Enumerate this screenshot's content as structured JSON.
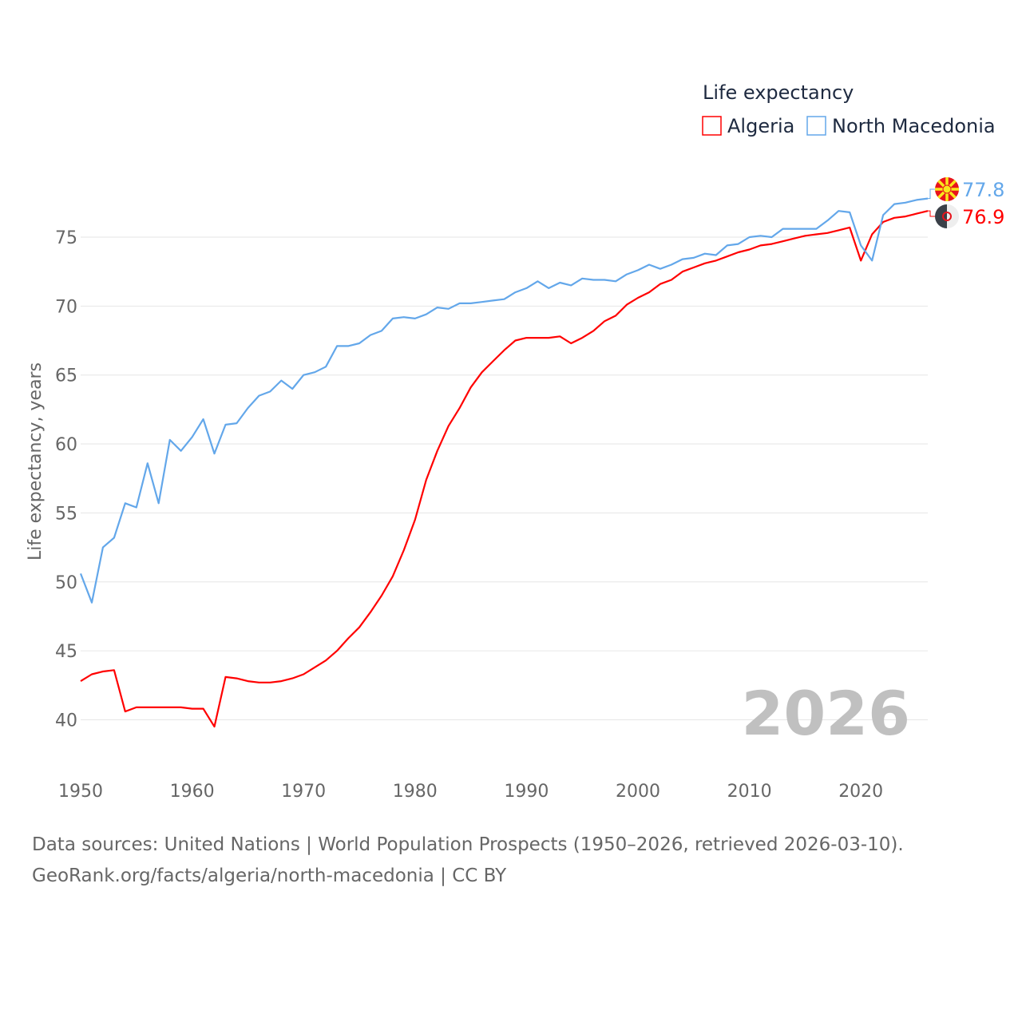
{
  "chart_data": {
    "type": "line",
    "title": "",
    "legend_title": "Life expectancy",
    "legend_placement": "top-right",
    "ylabel": "Life expectancy, years",
    "xlabel": "",
    "ylim": [
      37,
      79
    ],
    "xlim": [
      1950,
      2026
    ],
    "y_ticks": [
      40,
      45,
      50,
      55,
      60,
      65,
      70,
      75
    ],
    "x_ticks": [
      1950,
      1960,
      1970,
      1980,
      1990,
      2000,
      2010,
      2020
    ],
    "grid": true,
    "year_watermark": "2026",
    "x": [
      1950,
      1951,
      1952,
      1953,
      1954,
      1955,
      1956,
      1957,
      1958,
      1959,
      1960,
      1961,
      1962,
      1963,
      1964,
      1965,
      1966,
      1967,
      1968,
      1969,
      1970,
      1971,
      1972,
      1973,
      1974,
      1975,
      1976,
      1977,
      1978,
      1979,
      1980,
      1981,
      1982,
      1983,
      1984,
      1985,
      1986,
      1987,
      1988,
      1989,
      1990,
      1991,
      1992,
      1993,
      1994,
      1995,
      1996,
      1997,
      1998,
      1999,
      2000,
      2001,
      2002,
      2003,
      2004,
      2005,
      2006,
      2007,
      2008,
      2009,
      2010,
      2011,
      2012,
      2013,
      2014,
      2015,
      2016,
      2017,
      2018,
      2019,
      2020,
      2021,
      2022,
      2023,
      2024,
      2025,
      2026
    ],
    "series": [
      {
        "name": "Algeria",
        "color": "#ff0000",
        "end_label": "76.9",
        "flag": "algeria",
        "values": [
          42.8,
          43.3,
          43.5,
          43.6,
          40.6,
          40.9,
          40.9,
          40.9,
          40.9,
          40.9,
          40.8,
          40.8,
          39.5,
          43.1,
          43.0,
          42.8,
          42.7,
          42.7,
          42.8,
          43.0,
          43.3,
          43.8,
          44.3,
          45.0,
          45.9,
          46.7,
          47.8,
          49.0,
          50.4,
          52.3,
          54.5,
          57.4,
          59.5,
          61.3,
          62.6,
          64.1,
          65.2,
          66.0,
          66.8,
          67.5,
          67.7,
          67.7,
          67.7,
          67.8,
          67.3,
          67.7,
          68.2,
          68.9,
          69.3,
          70.1,
          70.6,
          71.0,
          71.6,
          71.9,
          72.5,
          72.8,
          73.1,
          73.3,
          73.6,
          73.9,
          74.1,
          74.4,
          74.5,
          74.7,
          74.9,
          75.1,
          75.2,
          75.3,
          75.5,
          75.7,
          73.3,
          75.2,
          76.1,
          76.4,
          76.5,
          76.7,
          76.9
        ]
      },
      {
        "name": "North Macedonia",
        "color": "#63a7ea",
        "end_label": "77.8",
        "flag": "north-macedonia",
        "values": [
          50.6,
          48.5,
          52.5,
          53.2,
          55.7,
          55.4,
          58.6,
          55.7,
          60.3,
          59.5,
          60.5,
          61.8,
          59.3,
          61.4,
          61.5,
          62.6,
          63.5,
          63.8,
          64.6,
          64.0,
          65.0,
          65.2,
          65.6,
          67.1,
          67.1,
          67.3,
          67.9,
          68.2,
          69.1,
          69.2,
          69.1,
          69.4,
          69.9,
          69.8,
          70.2,
          70.2,
          70.3,
          70.4,
          70.5,
          71.0,
          71.3,
          71.8,
          71.3,
          71.7,
          71.5,
          72.0,
          71.9,
          71.9,
          71.8,
          72.3,
          72.6,
          73.0,
          72.7,
          73.0,
          73.4,
          73.5,
          73.8,
          73.7,
          74.4,
          74.5,
          75.0,
          75.1,
          75.0,
          75.6,
          75.6,
          75.6,
          75.6,
          76.2,
          76.9,
          76.8,
          74.4,
          73.3,
          76.6,
          77.4,
          77.5,
          77.7,
          77.8
        ]
      }
    ]
  },
  "footer": {
    "sources": "Data sources: United Nations | World Population Prospects (1950–2026, retrieved 2026-03-10).",
    "link": "GeoRank.org/facts/algeria/north-macedonia | CC BY"
  }
}
